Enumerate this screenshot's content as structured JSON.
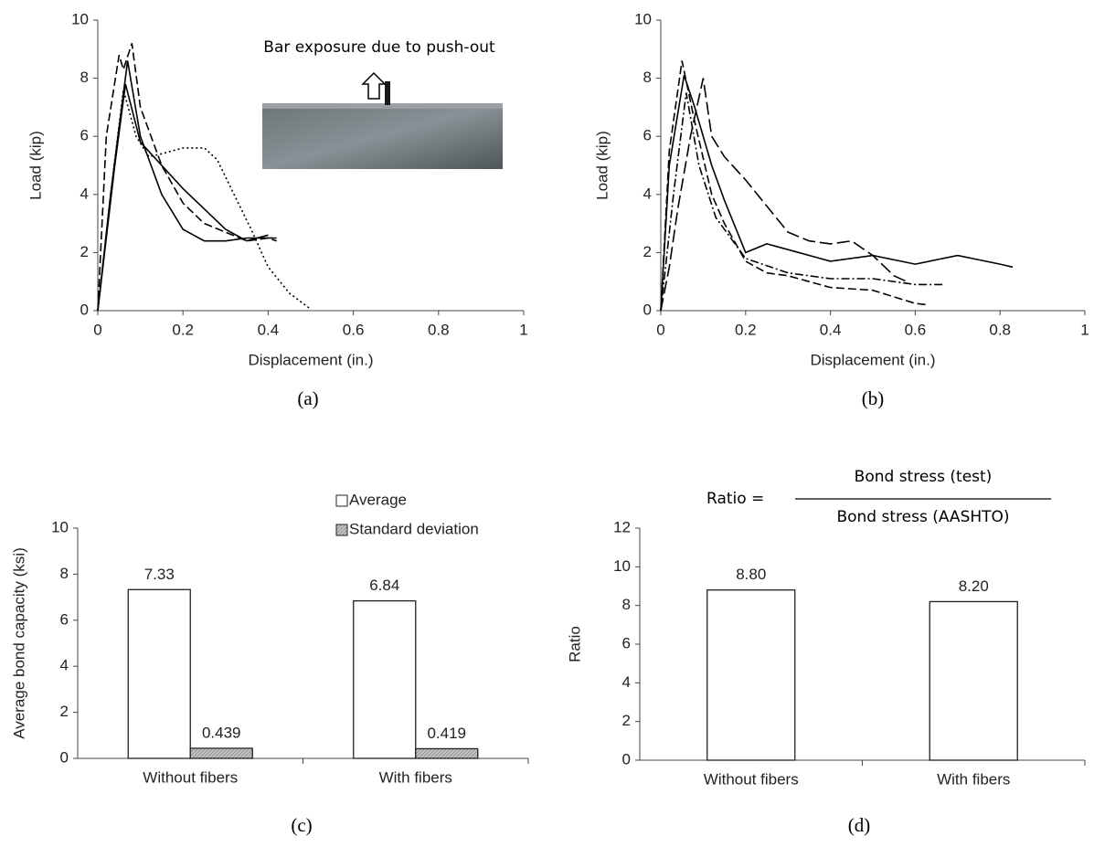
{
  "chart_data": [
    {
      "type": "line",
      "caption": "(a)",
      "xlabel": "Displacement (in.)",
      "ylabel": "Load (kip)",
      "annotation": "Bar exposure due to push-out",
      "xlim": [
        0,
        1
      ],
      "xticks": [
        0,
        0.2,
        0.4,
        0.6,
        0.8,
        1
      ],
      "ylim": [
        0,
        10
      ],
      "yticks": [
        0,
        2,
        4,
        6,
        8,
        10
      ],
      "series": [
        {
          "color": "#000",
          "dash": "solid",
          "x": [
            0,
            0.03,
            0.07,
            0.1,
            0.15,
            0.2,
            0.25,
            0.3,
            0.35,
            0.4,
            0.42
          ],
          "values": [
            0,
            4,
            8.6,
            6,
            4,
            2.8,
            2.4,
            2.4,
            2.5,
            2.5,
            2.5
          ]
        },
        {
          "color": "#000",
          "dash": "solid",
          "x": [
            0,
            0.04,
            0.065,
            0.1,
            0.15,
            0.2,
            0.25,
            0.3,
            0.35,
            0.4
          ],
          "values": [
            0,
            5,
            7.8,
            5.8,
            5,
            4.2,
            3.5,
            2.8,
            2.4,
            2.6
          ]
        },
        {
          "color": "#000",
          "dash": "dashed",
          "x": [
            0,
            0.02,
            0.05,
            0.06,
            0.08,
            0.1,
            0.15,
            0.2,
            0.25,
            0.3,
            0.35,
            0.4,
            0.42
          ],
          "values": [
            0,
            6,
            8.8,
            8.3,
            9.2,
            7,
            5,
            3.7,
            3,
            2.7,
            2.4,
            2.5,
            2.4
          ]
        },
        {
          "color": "#000",
          "dash": "dotted",
          "x": [
            0,
            0.03,
            0.06,
            0.09,
            0.12,
            0.15,
            0.2,
            0.25,
            0.28,
            0.32,
            0.36,
            0.4,
            0.45,
            0.5
          ],
          "values": [
            0,
            4,
            7.6,
            6,
            5.3,
            5.4,
            5.6,
            5.6,
            5.2,
            4,
            2.8,
            1.5,
            0.6,
            0.05
          ]
        }
      ]
    },
    {
      "type": "line",
      "caption": "(b)",
      "xlabel": "Displacement (in.)",
      "ylabel": "Load (kip)",
      "xlim": [
        0,
        1
      ],
      "xticks": [
        0,
        0.2,
        0.4,
        0.6,
        0.8,
        1
      ],
      "ylim": [
        0,
        10
      ],
      "yticks": [
        0,
        2,
        4,
        6,
        8,
        10
      ],
      "series": [
        {
          "color": "#000",
          "dash": "solid",
          "x": [
            0,
            0.02,
            0.055,
            0.08,
            0.12,
            0.15,
            0.2,
            0.25,
            0.3,
            0.4,
            0.5,
            0.6,
            0.7,
            0.8,
            0.83
          ],
          "values": [
            0,
            5,
            8.1,
            7,
            5,
            3.8,
            2,
            2.3,
            2.1,
            1.7,
            1.9,
            1.6,
            1.9,
            1.6,
            1.5
          ]
        },
        {
          "color": "#000",
          "dash": "dashed",
          "x": [
            0,
            0.02,
            0.05,
            0.08,
            0.12,
            0.15,
            0.2,
            0.25,
            0.3,
            0.4,
            0.5,
            0.6,
            0.63
          ],
          "values": [
            0,
            5.5,
            8.6,
            6.5,
            4,
            3,
            1.7,
            1.3,
            1.2,
            0.8,
            0.7,
            0.25,
            0.2
          ]
        },
        {
          "color": "#000",
          "dash": "dashdot",
          "x": [
            0,
            0.03,
            0.06,
            0.09,
            0.13,
            0.2,
            0.3,
            0.4,
            0.5,
            0.6,
            0.67
          ],
          "values": [
            0,
            4,
            7.5,
            5,
            3.2,
            1.8,
            1.3,
            1.1,
            1.1,
            0.9,
            0.9
          ]
        },
        {
          "color": "#000",
          "dash": "longdash",
          "x": [
            0,
            0.02,
            0.04,
            0.07,
            0.1,
            0.12,
            0.15,
            0.2,
            0.25,
            0.3,
            0.35,
            0.4,
            0.45,
            0.5,
            0.55,
            0.58
          ],
          "values": [
            0,
            1.5,
            3.5,
            6,
            8,
            6,
            5.3,
            4.5,
            3.6,
            2.7,
            2.4,
            2.3,
            2.4,
            1.9,
            1.2,
            1
          ]
        }
      ]
    },
    {
      "type": "bar",
      "caption": "(c)",
      "ylabel": "Average bond capacity (ksi)",
      "categories": [
        "Without fibers",
        "With fibers"
      ],
      "ylim": [
        0,
        10
      ],
      "yticks": [
        0,
        2,
        4,
        6,
        8,
        10
      ],
      "series": [
        {
          "name": "Average",
          "color": "#ffffff",
          "values": [
            7.33,
            6.84
          ]
        },
        {
          "name": "Standard deviation",
          "color": "#bdbdbd",
          "values": [
            0.439,
            0.419
          ]
        }
      ]
    },
    {
      "type": "bar",
      "caption": "(d)",
      "ylabel": "Ratio",
      "annotation": {
        "lhs": "Ratio =",
        "numerator": "Bond stress (test)",
        "denominator": "Bond stress (AASHTO)"
      },
      "categories": [
        "Without fibers",
        "With fibers"
      ],
      "ylim": [
        0,
        12
      ],
      "yticks": [
        0,
        2,
        4,
        6,
        8,
        10,
        12
      ],
      "series": [
        {
          "color": "#ffffff",
          "values": [
            8.8,
            8.2
          ],
          "value_labels": [
            "8.80",
            "8.20"
          ]
        }
      ]
    }
  ]
}
